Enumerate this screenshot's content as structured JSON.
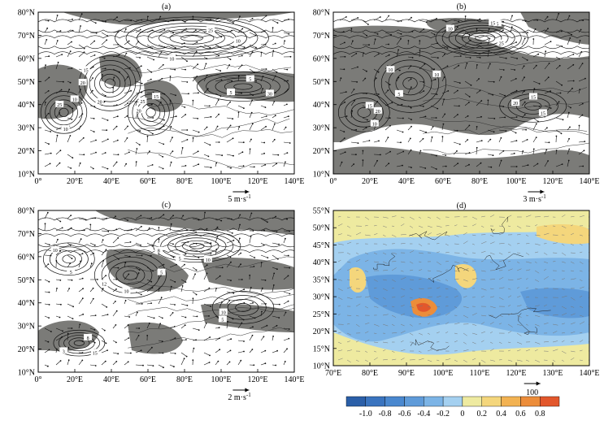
{
  "chart_data": [
    {
      "type": "contour",
      "label": "(a)",
      "x_ticks": [
        "0°",
        "20°E",
        "40°E",
        "60°E",
        "80°E",
        "100°E",
        "120°E",
        "140°E"
      ],
      "y_ticks": [
        "10°N",
        "20°N",
        "30°N",
        "40°N",
        "50°N",
        "60°N",
        "70°N",
        "80°N"
      ],
      "xlim": [
        0,
        140
      ],
      "ylim": [
        10,
        80
      ],
      "vector_ref": {
        "label": "5 m·s",
        "exp": "-1"
      },
      "contour_labels": [
        "10",
        "15",
        "20",
        "25",
        "5",
        "10",
        "20",
        "25",
        "10",
        "30",
        "25",
        "20",
        "15",
        "10",
        "5"
      ]
    },
    {
      "type": "contour",
      "label": "(b)",
      "x_ticks": [
        "0°",
        "20°E",
        "40°E",
        "60°E",
        "80°E",
        "100°E",
        "120°E",
        "140°E"
      ],
      "y_ticks": [
        "10°N",
        "20°N",
        "30°N",
        "40°N",
        "50°N",
        "60°N",
        "70°N",
        "80°N"
      ],
      "xlim": [
        0,
        140
      ],
      "ylim": [
        10,
        80
      ],
      "vector_ref": {
        "label": "3 m·s",
        "exp": "-1"
      },
      "contour_labels": [
        "5",
        "10",
        "15",
        "20",
        "15",
        "10",
        "20",
        "15",
        "10",
        "5",
        "10",
        "15",
        "25"
      ]
    },
    {
      "type": "contour",
      "label": "(c)",
      "x_ticks": [
        "0°",
        "20°E",
        "40°E",
        "60°E",
        "80°E",
        "100°E",
        "120°E",
        "140°E"
      ],
      "y_ticks": [
        "10°N",
        "20°N",
        "30°N",
        "40°N",
        "50°N",
        "60°N",
        "70°N",
        "80°N"
      ],
      "xlim": [
        0,
        140
      ],
      "ylim": [
        10,
        80
      ],
      "vector_ref": {
        "label": "2 m·s",
        "exp": "-1"
      },
      "contour_labels": [
        "5",
        "10",
        "15",
        "10",
        "5",
        "10",
        "12",
        "8",
        "5",
        "10",
        "8",
        "5",
        "3"
      ]
    },
    {
      "type": "heatmap",
      "label": "(d)",
      "x_ticks": [
        "70°E",
        "80°E",
        "90°E",
        "100°E",
        "110°E",
        "120°E",
        "130°E",
        "140°E"
      ],
      "y_ticks": [
        "10°N",
        "15°N",
        "20°N",
        "25°N",
        "30°N",
        "35°N",
        "40°N",
        "45°N",
        "50°N",
        "55°N"
      ],
      "xlim": [
        70,
        140
      ],
      "ylim": [
        10,
        55
      ],
      "vector_ref": {
        "label": "100"
      },
      "colorbar_labels": [
        "-1.0",
        "-0.8",
        "-0.6",
        "-0.4",
        "-0.2",
        "0",
        "0.2",
        "0.4",
        "0.6",
        "0.8"
      ],
      "colorbar_colors": [
        "#2b5fa8",
        "#3a74bf",
        "#4a88cf",
        "#5f9bd9",
        "#7cb4e6",
        "#a4d0f0",
        "#eeeaa0",
        "#f4d67c",
        "#f2b252",
        "#ec8d3a",
        "#e2572c"
      ]
    }
  ]
}
